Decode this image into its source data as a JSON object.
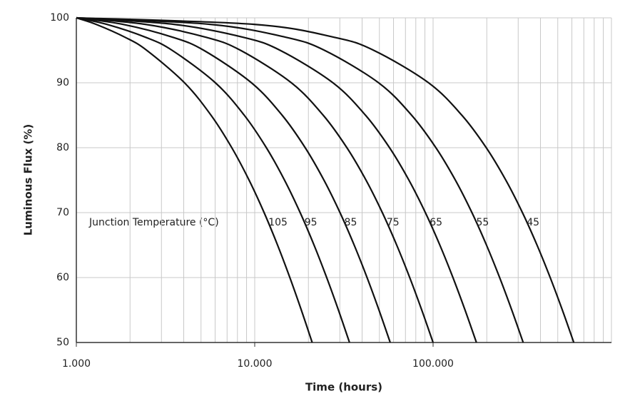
{
  "chart_data": {
    "type": "line",
    "x_label": "Time (hours)",
    "y_label": "Luminous Flux (%)",
    "annotation": "Junction Temperature (°C)",
    "xscale": "log",
    "xlim": [
      1000,
      1000000
    ],
    "ylim": [
      50,
      100
    ],
    "xticks": [
      {
        "value": 1000,
        "label": "1.000"
      },
      {
        "value": 10000,
        "label": "10.000"
      },
      {
        "value": 100000,
        "label": "100.000"
      }
    ],
    "xminor": [
      2000,
      3000,
      4000,
      5000,
      6000,
      7000,
      8000,
      9000,
      20000,
      30000,
      40000,
      50000,
      60000,
      70000,
      80000,
      90000,
      200000,
      300000,
      400000,
      500000,
      600000,
      700000,
      800000,
      900000,
      1000000
    ],
    "yticks": [
      50,
      60,
      70,
      80,
      90,
      100
    ],
    "grid": true,
    "series": [
      {
        "name": "105",
        "color": "#111111",
        "x": [
          1000,
          1290,
          1878,
          2480,
          4040,
          5690,
          7438,
          9300,
          11292,
          13430,
          15740,
          18250,
          21000
        ],
        "values": [
          100,
          99,
          97,
          95,
          90,
          85,
          80,
          75,
          70,
          65,
          60,
          55,
          50
        ]
      },
      {
        "name": "95",
        "color": "#111111",
        "x": [
          1000,
          1479,
          2449,
          3442,
          6016,
          8739,
          11623,
          14695,
          17982,
          21510,
          25321,
          29463,
          34000
        ],
        "values": [
          100,
          99,
          97,
          95,
          90,
          85,
          80,
          75,
          70,
          65,
          60,
          55,
          50
        ]
      },
      {
        "name": "85",
        "color": "#111111",
        "x": [
          1000,
          1819,
          3480,
          5181,
          9588,
          14249,
          19187,
          24448,
          30075,
          36115,
          42641,
          49731,
          57500
        ],
        "values": [
          100,
          99,
          97,
          95,
          90,
          85,
          80,
          75,
          70,
          65,
          60,
          55,
          50
        ]
      },
      {
        "name": "75",
        "color": "#111111",
        "x": [
          1000,
          2436,
          5346,
          8326,
          16048,
          24216,
          32868,
          42085,
          51945,
          62529,
          73963,
          86388,
          100000
        ],
        "values": [
          100,
          99,
          97,
          95,
          90,
          85,
          80,
          75,
          70,
          65,
          60,
          55,
          50
        ]
      },
      {
        "name": "65",
        "color": "#111111",
        "x": [
          1000,
          3523,
          8639,
          13876,
          27448,
          41803,
          57011,
          73210,
          90540,
          109141,
          129238,
          151075,
          175000
        ],
        "values": [
          100,
          99,
          97,
          95,
          90,
          85,
          80,
          75,
          70,
          65,
          60,
          55,
          50
        ]
      },
      {
        "name": "55",
        "color": "#111111",
        "x": [
          1000,
          5626,
          15004,
          24606,
          49488,
          75806,
          103686,
          133385,
          165157,
          199259,
          236103,
          276138,
          320000
        ],
        "values": [
          100,
          99,
          97,
          95,
          90,
          85,
          80,
          75,
          70,
          65,
          60,
          55,
          50
        ]
      },
      {
        "name": "45",
        "color": "#111111",
        "x": [
          1000,
          9903,
          27955,
          46436,
          94328,
          144983,
          198647,
          255810,
          316964,
          382601,
          453518,
          530575,
          615000
        ],
        "values": [
          100,
          99,
          97,
          95,
          90,
          85,
          80,
          75,
          70,
          65,
          60,
          55,
          50
        ]
      }
    ]
  }
}
